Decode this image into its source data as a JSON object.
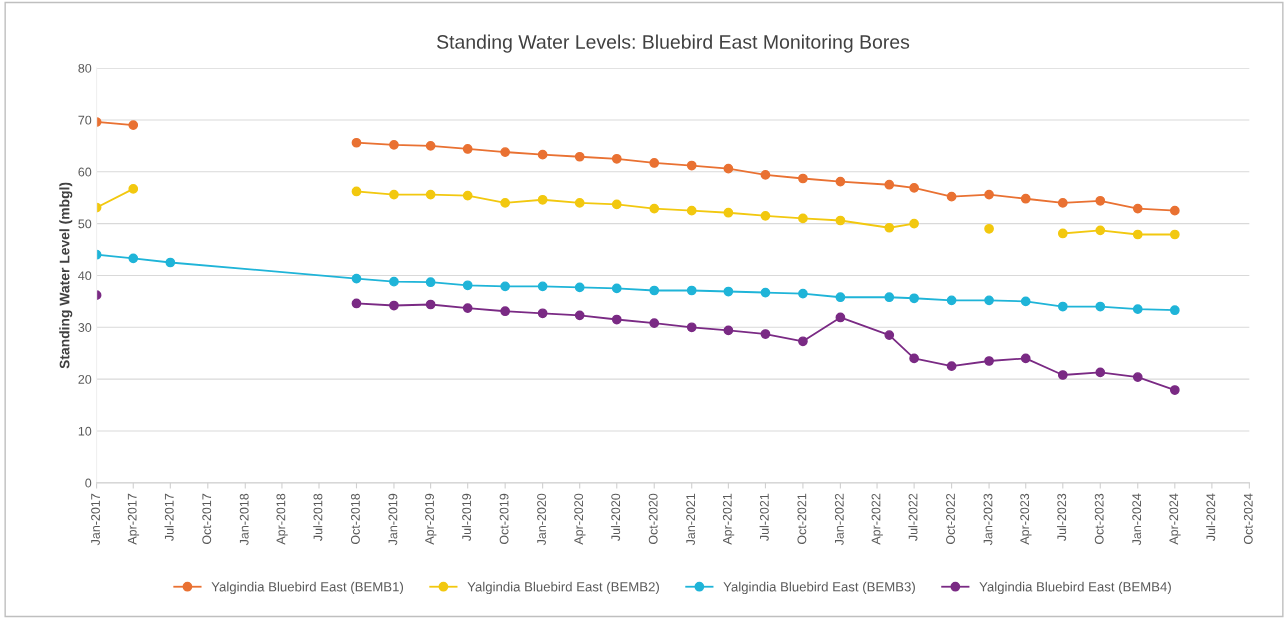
{
  "chart_data": {
    "type": "line",
    "title": "Standing Water Levels: Bluebird East Monitoring Bores",
    "ylabel": "Standing Water Level (mbgl)",
    "x": [
      "2017-01",
      "2017-04",
      "2017-07",
      "2018-10",
      "2019-01",
      "2019-04",
      "2019-07",
      "2019-10",
      "2020-01",
      "2020-04",
      "2020-07",
      "2020-10",
      "2021-01",
      "2021-04",
      "2021-07",
      "2021-10",
      "2022-01",
      "2022-05",
      "2022-07",
      "2022-10",
      "2023-01",
      "2023-04",
      "2023-07",
      "2023-10",
      "2024-01",
      "2024-04"
    ],
    "series": [
      {
        "name": "Yalgindia Bluebird East (BEMB1)",
        "color": "#e97132",
        "values": [
          69.6,
          69.0,
          null,
          65.6,
          65.2,
          65.0,
          64.4,
          63.8,
          63.3,
          62.9,
          62.5,
          61.7,
          61.2,
          60.6,
          59.4,
          58.7,
          58.1,
          57.5,
          56.9,
          55.2,
          55.6,
          54.8,
          54.0,
          54.4,
          52.9,
          52.5
        ]
      },
      {
        "name": "Yalgindia Bluebird East (BEMB2)",
        "color": "#f2c80f",
        "values": [
          53.1,
          56.7,
          null,
          56.2,
          55.6,
          55.6,
          55.4,
          54.0,
          54.6,
          54.0,
          53.7,
          52.9,
          52.5,
          52.1,
          51.5,
          51.0,
          50.6,
          49.2,
          50.0,
          null,
          49.0,
          null,
          48.1,
          48.7,
          47.9,
          47.9
        ]
      },
      {
        "name": "Yalgindia Bluebird East (BEMB3)",
        "color": "#1fb4d8",
        "values": [
          44.0,
          43.3,
          42.5,
          39.4,
          38.8,
          38.7,
          38.1,
          37.9,
          37.9,
          37.7,
          37.5,
          37.1,
          37.1,
          36.9,
          36.7,
          36.5,
          35.8,
          35.8,
          35.6,
          35.2,
          35.2,
          35.0,
          34.0,
          34.0,
          33.5,
          33.3
        ]
      },
      {
        "name": "Yalgindia Bluebird East (BEMB4)",
        "color": "#7a2a84",
        "values": [
          36.2,
          null,
          null,
          34.6,
          34.2,
          34.4,
          33.7,
          33.1,
          32.7,
          32.3,
          31.5,
          30.8,
          30.0,
          29.4,
          28.7,
          27.3,
          31.9,
          28.5,
          24.0,
          22.5,
          23.5,
          24.0,
          20.8,
          21.3,
          20.4,
          17.9
        ]
      }
    ],
    "xlim": [
      "2017-01",
      "2024-10"
    ],
    "xticks": [
      {
        "value": "2017-01",
        "label": "Jan-2017"
      },
      {
        "value": "2017-04",
        "label": "Apr-2017"
      },
      {
        "value": "2017-07",
        "label": "Jul-2017"
      },
      {
        "value": "2017-10",
        "label": "Oct-2017"
      },
      {
        "value": "2018-01",
        "label": "Jan-2018"
      },
      {
        "value": "2018-04",
        "label": "Apr-2018"
      },
      {
        "value": "2018-07",
        "label": "Jul-2018"
      },
      {
        "value": "2018-10",
        "label": "Oct-2018"
      },
      {
        "value": "2019-01",
        "label": "Jan-2019"
      },
      {
        "value": "2019-04",
        "label": "Apr-2019"
      },
      {
        "value": "2019-07",
        "label": "Jul-2019"
      },
      {
        "value": "2019-10",
        "label": "Oct-2019"
      },
      {
        "value": "2020-01",
        "label": "Jan-2020"
      },
      {
        "value": "2020-04",
        "label": "Apr-2020"
      },
      {
        "value": "2020-07",
        "label": "Jul-2020"
      },
      {
        "value": "2020-10",
        "label": "Oct-2020"
      },
      {
        "value": "2021-01",
        "label": "Jan-2021"
      },
      {
        "value": "2021-04",
        "label": "Apr-2021"
      },
      {
        "value": "2021-07",
        "label": "Jul-2021"
      },
      {
        "value": "2021-10",
        "label": "Oct-2021"
      },
      {
        "value": "2022-01",
        "label": "Jan-2022"
      },
      {
        "value": "2022-04",
        "label": "Apr-2022"
      },
      {
        "value": "2022-07",
        "label": "Jul-2022"
      },
      {
        "value": "2022-10",
        "label": "Oct-2022"
      },
      {
        "value": "2023-01",
        "label": "Jan-2023"
      },
      {
        "value": "2023-04",
        "label": "Apr-2023"
      },
      {
        "value": "2023-07",
        "label": "Jul-2023"
      },
      {
        "value": "2023-10",
        "label": "Oct-2023"
      },
      {
        "value": "2024-01",
        "label": "Jan-2024"
      },
      {
        "value": "2024-04",
        "label": "Apr-2024"
      },
      {
        "value": "2024-07",
        "label": "Jul-2024"
      },
      {
        "value": "2024-10",
        "label": "Oct-2024"
      }
    ],
    "ylim": [
      0,
      80
    ],
    "yticks": [
      0,
      10,
      20,
      30,
      40,
      50,
      60,
      70,
      80
    ],
    "grid": "y",
    "legend": "bottom",
    "marker": "circle",
    "line_style": "solid"
  }
}
